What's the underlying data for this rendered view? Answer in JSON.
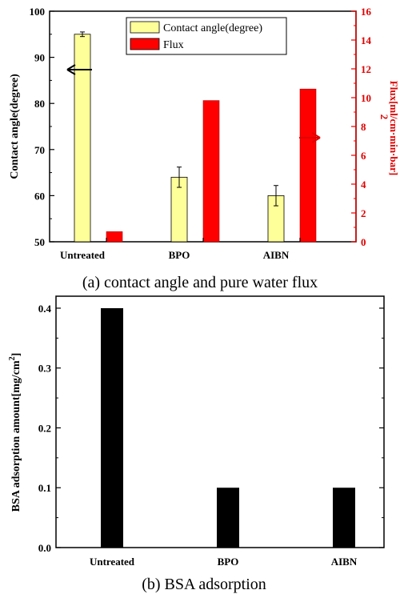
{
  "chart_data": [
    {
      "type": "bar",
      "categories": [
        "Untreated",
        "BPO",
        "AIBN"
      ],
      "series": [
        {
          "name": "Contact angle(degree)",
          "axis": "left",
          "color": "#ffff99",
          "values": [
            95,
            64,
            60
          ],
          "errors": [
            0.5,
            2.2,
            2.2
          ]
        },
        {
          "name": "Flux",
          "axis": "right",
          "color": "#ff0000",
          "values": [
            0.7,
            9.8,
            10.6
          ]
        }
      ],
      "ylabel": "Contact angle(degree)",
      "ylabel_right": "Flux[ml/cm·min·bar]",
      "ylabel_right_sup": "2",
      "ylim": [
        50,
        100
      ],
      "ylim_right": [
        0,
        16
      ],
      "yticks": [
        50,
        60,
        70,
        80,
        90,
        100
      ],
      "yticks_right": [
        0,
        2,
        4,
        6,
        8,
        10,
        12,
        14,
        16
      ],
      "legend": "top-center",
      "caption": "(a) contact angle and pure water flux"
    },
    {
      "type": "bar",
      "categories": [
        "Untreated",
        "BPO",
        "AIBN"
      ],
      "series": [
        {
          "color": "#000000",
          "values": [
            0.4,
            0.1,
            0.1
          ]
        }
      ],
      "ylabel": "BSA adsorption amount[mg/cm",
      "ylabel_sup": "2",
      "ylabel_close": "]",
      "ylim": [
        0,
        0.42
      ],
      "yticks": [
        "0.0",
        "0.1",
        "0.2",
        "0.3",
        "0.4"
      ],
      "caption": "(b) BSA adsorption"
    }
  ]
}
